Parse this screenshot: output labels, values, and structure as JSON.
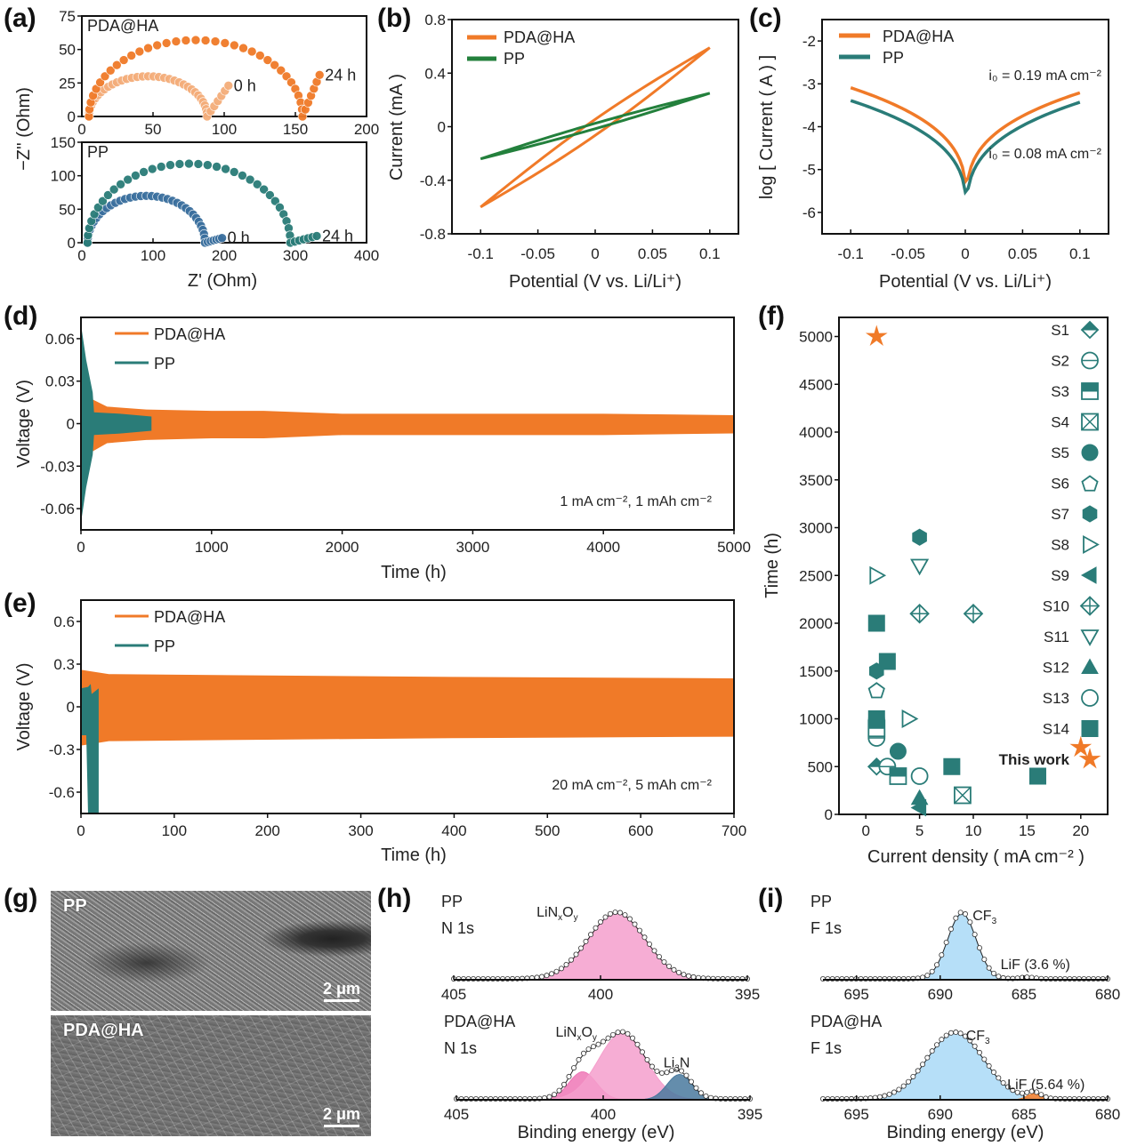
{
  "colors": {
    "orange": "#f07a28",
    "orange_light": "#f4ad7a",
    "teal": "#2a7c78",
    "blue": "#3a6f9e",
    "green": "#23803c",
    "pink": "#f59fcc",
    "pink_dark": "#ee77b6",
    "navy": "#49799d",
    "sky": "#a9d9f7"
  },
  "chart_data": [
    {
      "id": "a",
      "panel_label": "(a)",
      "type": "scatter",
      "title": "",
      "ylabel": "−Z'' (Ohm)",
      "xlabel": "Z' (Ohm)",
      "subplots": [
        {
          "name": "PDA@HA",
          "xlim": [
            0,
            200
          ],
          "ylim": [
            0,
            75
          ],
          "xticks": [
            "0",
            "50",
            "100",
            "150",
            "200"
          ],
          "yticks": [
            "0",
            "25",
            "50",
            "75"
          ],
          "series": [
            {
              "name": "0 h",
              "label": "0 h",
              "color": "orange_light",
              "R0": 5,
              "Rct": 83,
              "peak": 30,
              "tail_end": [
                103,
                23
              ]
            },
            {
              "name": "24 h",
              "label": "24 h",
              "color": "orange",
              "R0": 5,
              "Rct": 150,
              "peak": 57,
              "tail_end": [
                167,
                31
              ]
            }
          ]
        },
        {
          "name": "PP",
          "xlim": [
            0,
            400
          ],
          "ylim": [
            0,
            150
          ],
          "xticks": [
            "0",
            "100",
            "200",
            "300",
            "400"
          ],
          "yticks": [
            "0",
            "50",
            "100",
            "150"
          ],
          "series": [
            {
              "name": "0 h",
              "label": "0 h",
              "color": "blue",
              "R0": 8,
              "Rct": 165,
              "peak": 70,
              "tail_end": [
                197,
                7
              ]
            },
            {
              "name": "24 h",
              "label": "24 h",
              "color": "teal",
              "R0": 8,
              "Rct": 285,
              "peak": 118,
              "tail_end": [
                330,
                10
              ]
            }
          ]
        }
      ]
    },
    {
      "id": "b",
      "panel_label": "(b)",
      "type": "line",
      "xlabel": "Potential (V vs. Li/Li⁺)",
      "ylabel": "Current  (mA )",
      "xlim": [
        -0.125,
        0.125
      ],
      "ylim": [
        -0.8,
        0.8
      ],
      "xticks": [
        "-0.1",
        "-0.05",
        "0",
        "0.05",
        "0.1"
      ],
      "xtick_values": [
        -0.1,
        -0.05,
        0,
        0.05,
        0.1
      ],
      "yticks": [
        "-0.8",
        "-0.4",
        "0",
        "0.4",
        "0.8"
      ],
      "ytick_values": [
        -0.8,
        -0.4,
        0,
        0.4,
        0.8
      ],
      "legend": "top-left",
      "series": [
        {
          "name": "PDA@HA",
          "color": "orange",
          "x_range": [
            -0.1,
            0.1
          ],
          "i_max": 0.59,
          "i_min": -0.6,
          "loop_width": 0.06
        },
        {
          "name": "PP",
          "color": "green",
          "x_range": [
            -0.1,
            0.1
          ],
          "i_max": 0.25,
          "i_min": -0.24,
          "loop_width": 0.02
        }
      ]
    },
    {
      "id": "c",
      "panel_label": "(c)",
      "type": "line",
      "xlabel": "Potential (V vs. Li/Li⁺)",
      "ylabel": "log [ Current ( A ) ]",
      "xlim": [
        -0.125,
        0.125
      ],
      "ylim": [
        -6.5,
        -1.5
      ],
      "xticks": [
        "-0.1",
        "-0.05",
        "0",
        "0.05",
        "0.1"
      ],
      "xtick_values": [
        -0.1,
        -0.05,
        0,
        0.05,
        0.1
      ],
      "yticks": [
        "-6",
        "-5",
        "-4",
        "-3",
        "-2"
      ],
      "ytick_values": [
        -6,
        -5,
        -4,
        -3,
        -2
      ],
      "legend": "top-left",
      "series": [
        {
          "name": "PDA@HA",
          "color": "orange",
          "left_end": -3.1,
          "right_end": -3.2,
          "min": -5.9
        },
        {
          "name": "PP",
          "color": "teal",
          "left_end": -3.4,
          "right_end": -3.42,
          "min": -6.15
        }
      ],
      "annotations": [
        {
          "text": "i₀ = 0.19 mA cm⁻²",
          "color": "orange"
        },
        {
          "text": "i₀ = 0.08 mA cm⁻²",
          "color": "teal"
        }
      ]
    },
    {
      "id": "d",
      "panel_label": "(d)",
      "type": "area",
      "xlabel": "Time (h)",
      "ylabel": "Voltage (V)",
      "xlim": [
        0,
        5000
      ],
      "ylim": [
        -0.075,
        0.075
      ],
      "xticks": [
        "0",
        "1000",
        "2000",
        "3000",
        "4000",
        "5000"
      ],
      "xtick_values": [
        0,
        1000,
        2000,
        3000,
        4000,
        5000
      ],
      "yticks": [
        "-0.06",
        "-0.03",
        "0",
        "0.03",
        "0.06"
      ],
      "ytick_values": [
        -0.06,
        -0.03,
        0,
        0.03,
        0.06
      ],
      "legend": "top-left",
      "condition": "1 mA cm⁻², 1 mAh cm⁻²",
      "series": [
        {
          "name": "PDA@HA",
          "color": "orange",
          "envelope": [
            [
              90,
              0.017
            ],
            [
              200,
              0.012
            ],
            [
              500,
              0.01
            ],
            [
              1000,
              0.009
            ],
            [
              1400,
              0.009
            ],
            [
              2000,
              0.007
            ],
            [
              3000,
              0.007
            ],
            [
              4000,
              0.007
            ],
            [
              5000,
              0.006
            ]
          ]
        },
        {
          "name": "PP",
          "color": "teal",
          "envelope": [
            [
              0,
              0.07
            ],
            [
              40,
              0.045
            ],
            [
              90,
              0.022
            ],
            [
              100,
              0.008
            ],
            [
              300,
              0.007
            ],
            [
              540,
              0.005
            ]
          ]
        }
      ]
    },
    {
      "id": "e",
      "panel_label": "(e)",
      "type": "area",
      "xlabel": "Time (h)",
      "ylabel": "Voltage (V)",
      "xlim": [
        0,
        700
      ],
      "ylim": [
        -0.75,
        0.75
      ],
      "xticks": [
        "0",
        "100",
        "200",
        "300",
        "400",
        "500",
        "600",
        "700"
      ],
      "xtick_values": [
        0,
        100,
        200,
        300,
        400,
        500,
        600,
        700
      ],
      "yticks": [
        "-0.6",
        "-0.3",
        "0",
        "0.3",
        "0.6"
      ],
      "ytick_values": [
        -0.6,
        -0.3,
        0,
        0.3,
        0.6
      ],
      "legend": "top-left",
      "condition": "20 mA cm⁻², 5 mAh cm⁻²",
      "series": [
        {
          "name": "PDA@HA",
          "color": "orange",
          "envelope": [
            [
              0,
              0.26
            ],
            [
              30,
              0.23
            ],
            [
              200,
              0.22
            ],
            [
              400,
              0.21
            ],
            [
              700,
              0.2
            ]
          ]
        },
        {
          "name": "PP",
          "color": "teal",
          "short_circuit_h": 19
        }
      ]
    },
    {
      "id": "f",
      "panel_label": "(f)",
      "type": "scatter",
      "xlabel": "Current density  ( mA cm⁻² )",
      "ylabel": "Time (h)",
      "xlim": [
        -2.5,
        22.5
      ],
      "ylim": [
        0,
        5200
      ],
      "xticks": [
        "0",
        "5",
        "10",
        "15",
        "20"
      ],
      "xtick_values": [
        0,
        5,
        10,
        15,
        20
      ],
      "yticks": [
        "0",
        "500",
        "1000",
        "1500",
        "2000",
        "2500",
        "3000",
        "3500",
        "4000",
        "4500",
        "5000"
      ],
      "ytick_values": [
        0,
        500,
        1000,
        1500,
        2000,
        2500,
        3000,
        3500,
        4000,
        4500,
        5000
      ],
      "legend": "right",
      "series": [
        {
          "name": "S1",
          "marker": "diamond-half",
          "points": [
            [
              1,
              500
            ]
          ]
        },
        {
          "name": "S2",
          "marker": "circle-line",
          "points": [
            [
              1,
              800
            ],
            [
              2,
              500
            ]
          ]
        },
        {
          "name": "S3",
          "marker": "square-half",
          "points": [
            [
              1,
              900
            ],
            [
              3,
              400
            ]
          ]
        },
        {
          "name": "S4",
          "marker": "square-x",
          "points": [
            [
              9,
              200
            ]
          ]
        },
        {
          "name": "S5",
          "marker": "circle-filled",
          "points": [
            [
              1,
              1000
            ],
            [
              3,
              660
            ]
          ]
        },
        {
          "name": "S6",
          "marker": "pentagon-open",
          "points": [
            [
              1,
              1300
            ]
          ]
        },
        {
          "name": "S7",
          "marker": "hexagon-filled",
          "points": [
            [
              5,
              2900
            ],
            [
              1,
              1500
            ]
          ]
        },
        {
          "name": "S8",
          "marker": "triangle-right-open",
          "points": [
            [
              1,
              2500
            ],
            [
              4,
              1000
            ]
          ]
        },
        {
          "name": "S9",
          "marker": "triangle-left-filled",
          "points": [
            [
              5,
              70
            ]
          ]
        },
        {
          "name": "S10",
          "marker": "diamond-cross",
          "points": [
            [
              5,
              2100
            ],
            [
              10,
              2100
            ]
          ]
        },
        {
          "name": "S11",
          "marker": "triangle-down-open",
          "points": [
            [
              5,
              2600
            ]
          ]
        },
        {
          "name": "S12",
          "marker": "triangle-up-filled",
          "points": [
            [
              5,
              170
            ]
          ]
        },
        {
          "name": "S13",
          "marker": "circle-open",
          "points": [
            [
              5,
              400
            ]
          ]
        },
        {
          "name": "S14",
          "marker": "square-filled",
          "points": [
            [
              1,
              2000
            ],
            [
              2,
              1600
            ],
            [
              1,
              1000
            ],
            [
              8,
              500
            ],
            [
              16,
              400
            ]
          ]
        },
        {
          "name": "This work",
          "marker": "star",
          "color": "orange",
          "points": [
            [
              1,
              5000
            ],
            [
              20,
              700
            ]
          ]
        }
      ]
    },
    {
      "id": "h",
      "panel_label": "(h)",
      "type": "area",
      "xlabel": "Binding energy (eV)",
      "subplots": [
        {
          "sample": "PP",
          "core": "N 1s",
          "xlim": [
            405,
            395
          ],
          "xticks": [
            "405",
            "400",
            "395"
          ],
          "peaks": [
            {
              "name": "LiNₓOᵧ",
              "label_main": "LiN",
              "sub1": "x",
              "mid": "O",
              "sub2": "y",
              "center": 399.45,
              "fwhm": 2.3,
              "height": 1.0,
              "color": "pink"
            }
          ]
        },
        {
          "sample": "PDA@HA",
          "core": "N 1s",
          "xlim": [
            405,
            395
          ],
          "xticks": [
            "405",
            "400",
            "395"
          ],
          "peaks": [
            {
              "name": "LiNₓOᵧ (high)",
              "center": 400.7,
              "fwhm": 1.1,
              "height": 0.42,
              "color": "pink_dark"
            },
            {
              "name": "LiNₓOᵧ",
              "label_main": "LiN",
              "sub1": "x",
              "mid": "O",
              "sub2": "y",
              "center": 399.35,
              "fwhm": 1.9,
              "height": 1.0,
              "color": "pink"
            },
            {
              "name": "Li₃N",
              "label_main": "Li",
              "sub1": "3",
              "mid": "N",
              "sub2": "",
              "center": 397.4,
              "fwhm": 1.0,
              "height": 0.38,
              "color": "navy"
            }
          ]
        }
      ]
    },
    {
      "id": "i",
      "panel_label": "(i)",
      "type": "area",
      "xlabel": "Binding energy (eV)",
      "subplots": [
        {
          "sample": "PP",
          "core": "F 1s",
          "xlim": [
            697,
            680
          ],
          "xticks": [
            "695",
            "690",
            "685",
            "680"
          ],
          "xtick_values": [
            695,
            690,
            685,
            680
          ],
          "peaks": [
            {
              "name": "CF₃",
              "label_main": "CF",
              "sub1": "",
              "mid": "",
              "sub2": "3",
              "center": 688.7,
              "fwhm": 2.0,
              "height": 1.0,
              "color": "sky"
            },
            {
              "name": "LiF (3.6 %)",
              "label_main": "LiF (3.6 %)",
              "center": 684.8,
              "fwhm": 1.0,
              "height": 0.025,
              "color": "orange"
            }
          ]
        },
        {
          "sample": "PDA@HA",
          "core": "F 1s",
          "xlim": [
            697,
            680
          ],
          "xticks": [
            "695",
            "690",
            "685",
            "680"
          ],
          "xtick_values": [
            695,
            690,
            685,
            680
          ],
          "peaks": [
            {
              "name": "CF₃",
              "label_main": "CF",
              "sub1": "",
              "mid": "",
              "sub2": "3",
              "center": 689.1,
              "fwhm": 4.0,
              "height": 1.0,
              "color": "sky"
            },
            {
              "name": "LiF (5.64 %)",
              "label_main": "LiF (5.64 %)",
              "center": 684.4,
              "fwhm": 1.0,
              "height": 0.09,
              "color": "orange"
            }
          ]
        }
      ]
    }
  ],
  "sem": {
    "panel_label": "(g)",
    "images": [
      {
        "label": "PP",
        "scale": "2 μm"
      },
      {
        "label": "PDA@HA",
        "scale": "2 μm"
      }
    ]
  }
}
